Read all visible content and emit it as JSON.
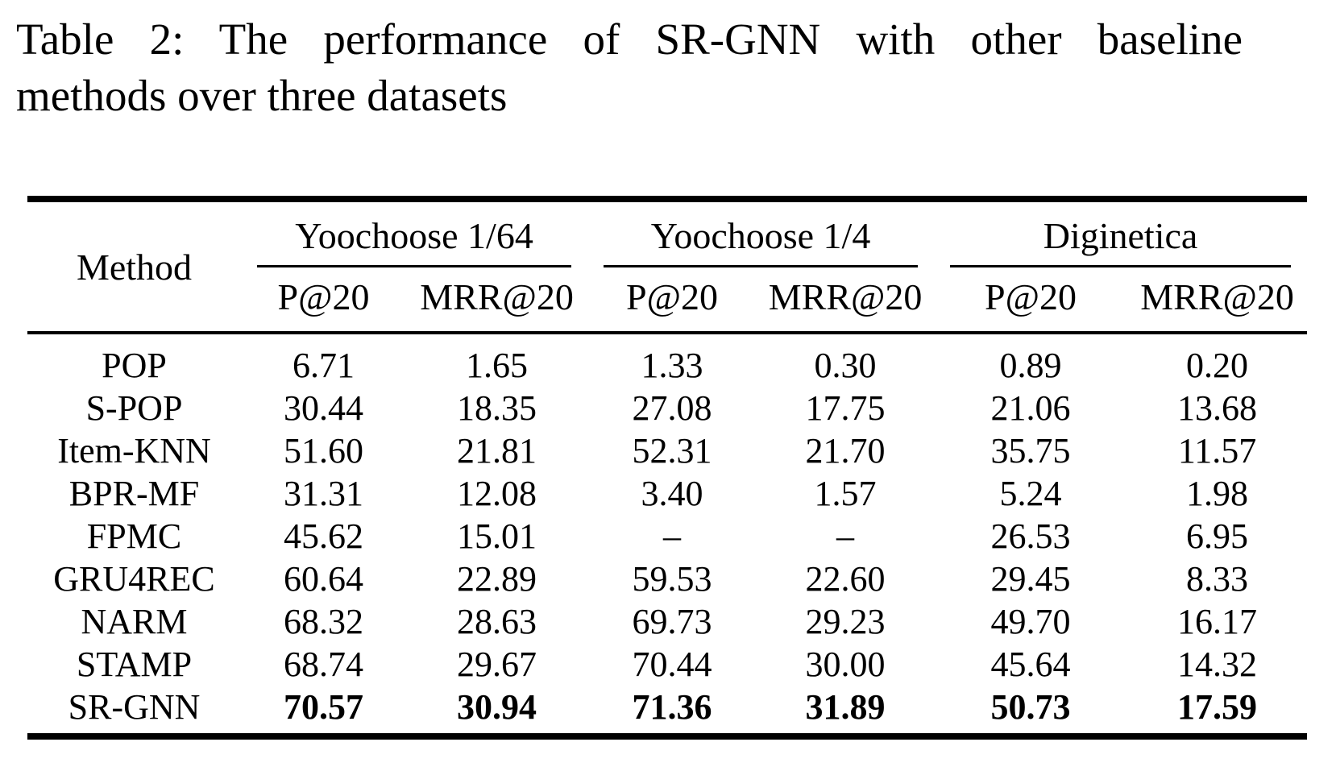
{
  "caption": {
    "line1": "Table 2: The performance of SR-GNN with other baseline",
    "line2": "methods over three datasets"
  },
  "table": {
    "method_header": "Method",
    "groups": [
      {
        "label": "Yoochoose 1/64",
        "sub": [
          "P@20",
          "MRR@20"
        ]
      },
      {
        "label": "Yoochoose 1/4",
        "sub": [
          "P@20",
          "MRR@20"
        ]
      },
      {
        "label": "Diginetica",
        "sub": [
          "P@20",
          "MRR@20"
        ]
      }
    ],
    "rows": [
      {
        "method": "POP",
        "values": [
          "6.71",
          "1.65",
          "1.33",
          "0.30",
          "0.89",
          "0.20"
        ],
        "bold": false
      },
      {
        "method": "S-POP",
        "values": [
          "30.44",
          "18.35",
          "27.08",
          "17.75",
          "21.06",
          "13.68"
        ],
        "bold": false
      },
      {
        "method": "Item-KNN",
        "values": [
          "51.60",
          "21.81",
          "52.31",
          "21.70",
          "35.75",
          "11.57"
        ],
        "bold": false
      },
      {
        "method": "BPR-MF",
        "values": [
          "31.31",
          "12.08",
          "3.40",
          "1.57",
          "5.24",
          "1.98"
        ],
        "bold": false
      },
      {
        "method": "FPMC",
        "values": [
          "45.62",
          "15.01",
          "–",
          "–",
          "26.53",
          "6.95"
        ],
        "bold": false
      },
      {
        "method": "GRU4REC",
        "values": [
          "60.64",
          "22.89",
          "59.53",
          "22.60",
          "29.45",
          "8.33"
        ],
        "bold": false
      },
      {
        "method": "NARM",
        "values": [
          "68.32",
          "28.63",
          "69.73",
          "29.23",
          "49.70",
          "16.17"
        ],
        "bold": false
      },
      {
        "method": "STAMP",
        "values": [
          "68.74",
          "29.67",
          "70.44",
          "30.00",
          "45.64",
          "14.32"
        ],
        "bold": false
      },
      {
        "method": "SR-GNN",
        "values": [
          "70.57",
          "30.94",
          "71.36",
          "31.89",
          "50.73",
          "17.59"
        ],
        "bold": true
      }
    ]
  },
  "colors": {
    "text": "#000000",
    "background": "#ffffff",
    "rule": "#000000"
  }
}
